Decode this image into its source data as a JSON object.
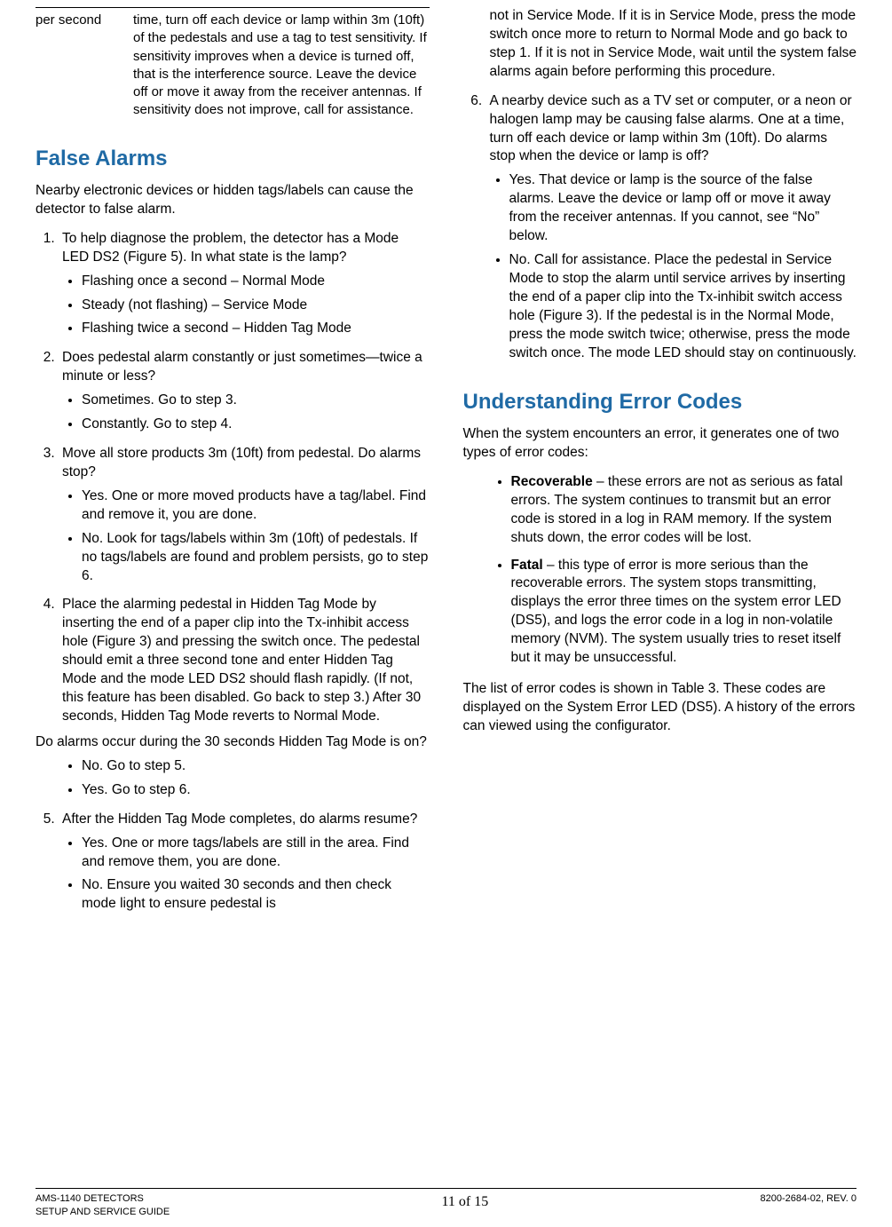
{
  "colors": {
    "heading": "#1f6aa5",
    "text": "#000000",
    "bg": "#ffffff",
    "rule": "#000000"
  },
  "typography": {
    "body_pt": 11,
    "heading_pt": 18,
    "font_family": "Arial"
  },
  "left": {
    "table_row": {
      "c1": "per second",
      "c2": "time, turn off each device or lamp within 3m (10ft) of the pedestals and use a tag to test sensitivity. If sensitivity improves when a device is turned off, that is the interference source. Leave the device off or move it away from the receiver antennas. If sensitivity does not improve, call for assistance."
    },
    "h_false_alarms": "False Alarms",
    "p_intro": "Nearby electronic devices or hidden tags/labels can cause the detector to false alarm.",
    "steps": {
      "s1": {
        "text": "To help diagnose the problem, the detector has a Mode LED DS2 (Figure 5). In what state is the lamp?",
        "b1": "Flashing once a second – Normal Mode",
        "b2": "Steady (not flashing) – Service Mode",
        "b3": "Flashing twice a second – Hidden Tag Mode"
      },
      "s2": {
        "text": "Does pedestal alarm constantly or just sometimes—twice a minute or less?",
        "b1": "Sometimes. Go to step 3.",
        "b2": "Constantly. Go to step 4."
      },
      "s3": {
        "text": "Move all store products 3m (10ft) from pedestal. Do alarms stop?",
        "b1": "Yes. One or more moved products have a tag/label. Find and remove it, you are done.",
        "b2": "No. Look for tags/labels within 3m (10ft) of pedestals. If no tags/labels are found and problem persists, go to step 6."
      },
      "s4": {
        "text": "Place the alarming pedestal in Hidden Tag Mode by inserting the end of a paper clip into the Tx-inhibit access hole (Figure 3) and pressing the switch once. The pedestal should emit a three second tone and enter Hidden Tag Mode and the mode LED DS2 should flash rapidly. (If not, this feature has been disabled. Go back to step 3.) After 30 seconds, Hidden Tag Mode reverts to Normal Mode.",
        "text2": "Do alarms occur during the 30 seconds Hidden Tag Mode is on?",
        "b1": "No. Go to step 5.",
        "b2": "Yes. Go to step 6."
      },
      "s5": {
        "text": "After the Hidden Tag Mode completes, do alarms resume?",
        "b1": "Yes. One or more tags/labels are still in the area. Find and remove them, you are done.",
        "b2": "No. Ensure you waited 30 seconds and then check mode light to ensure pedestal is"
      }
    }
  },
  "right": {
    "cont": "not in Service Mode. If it is in Service Mode, press the mode switch once more to return to Normal Mode and go back to step 1. If it is not in Service Mode, wait until the system false alarms again before performing this procedure.",
    "s6": {
      "text": "A nearby device such as a TV set or computer, or a neon or halogen lamp may be causing false alarms. One at a time, turn off each device or lamp within 3m (10ft). Do alarms stop when the device or lamp is off?",
      "b1": "Yes. That device or lamp is the source of the false alarms. Leave the device or lamp off or move it away from the receiver antennas. If you cannot, see “No” below.",
      "b2": "No. Call for assistance. Place the pedestal in Service Mode to stop the alarm until service arrives by inserting the end of a paper clip into the Tx-inhibit switch access hole (Figure 3). If the pedestal is in the Normal Mode, press the mode switch twice; otherwise, press the mode switch once. The mode LED should stay on continuously."
    },
    "h_codes": "Understanding Error Codes",
    "p_codes_intro": "When the system encounters an error, it generates one of two types of error codes:",
    "b_rec_label": "Recoverable",
    "b_rec_text": " – these errors are not as serious as fatal errors. The system continues to transmit but an error code is stored in a log in RAM memory. If the system shuts down, the error codes will be lost.",
    "b_fat_label": "Fatal",
    "b_fat_text": " – this type of error is more serious than the recoverable errors. The system stops transmitting, displays the error three times on the system error LED (DS5), and logs the error code in a log in non-volatile memory (NVM). The system usually tries to reset itself but it may be unsuccessful.",
    "p_table3": "The list of error codes is shown in Table 3. These codes are displayed on the System Error LED (DS5). A history of the errors can viewed using the configurator."
  },
  "footer": {
    "left1": "AMS-1140 DETECTORS",
    "left2": "SETUP AND SERVICE GUIDE",
    "center": "11 of 15",
    "right": "8200-2684-02, REV. 0"
  }
}
